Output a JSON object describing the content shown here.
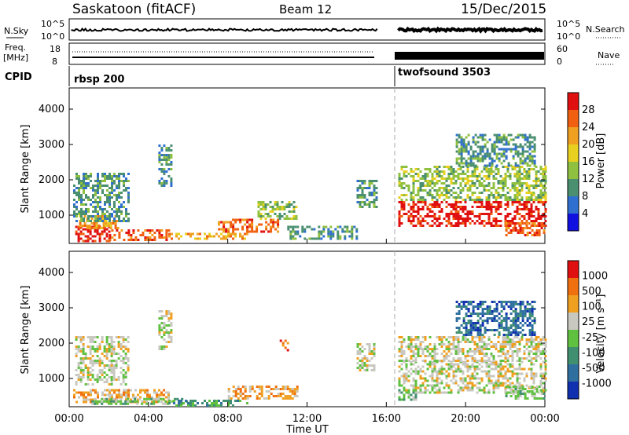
{
  "header": {
    "station": "Saskatoon (fitACF)",
    "beam": "Beam 12",
    "date": "15/Dec/2015"
  },
  "strip": {
    "nsky_label": "N.Sky",
    "nsky_ticks": [
      "10^5",
      "10^0"
    ],
    "nsearch_label": "N.Search",
    "nsearch_ticks": [
      "10^5",
      "10^0"
    ],
    "freq_label_line1": "Freq.",
    "freq_label_line2": "[MHz]",
    "freq_ticks": [
      "18",
      "8"
    ],
    "nave_label": "Nave",
    "nave_ticks": [
      "60",
      "0"
    ],
    "cpid_label": "CPID",
    "cpid_segments": [
      {
        "name": "rbsp 200",
        "start_hour": 0.0,
        "end_hour": 15.6
      },
      {
        "name": "twofsound 3503",
        "start_hour": 16.5,
        "end_hour": 24.0
      }
    ]
  },
  "chart_data": [
    {
      "type": "heatmap",
      "panel": "power",
      "ylabel": "Slant Range [km]",
      "yticks": [
        "1000",
        "2000",
        "3000",
        "4000"
      ],
      "ylim": [
        200,
        4600
      ],
      "x_range_hours": [
        0,
        24
      ],
      "data_gap_hours": [
        15.6,
        16.5
      ],
      "colorbar": {
        "label": "Power [dB]",
        "ticks": [
          "4",
          "8",
          "12",
          "16",
          "20",
          "24",
          "28"
        ],
        "colors": [
          "#1010e0",
          "#2f6fd0",
          "#4a8f70",
          "#8fc040",
          "#e8d020",
          "#f0a020",
          "#f06010",
          "#e01010"
        ]
      },
      "regions": [
        {
          "t0": 0.3,
          "t1": 2.0,
          "r0": 250,
          "r1": 700,
          "level": 7
        },
        {
          "t0": 0.5,
          "t1": 2.5,
          "r0": 600,
          "r1": 1000,
          "level": 5
        },
        {
          "t0": 0.2,
          "t1": 3.0,
          "r0": 800,
          "r1": 2200,
          "level": 2
        },
        {
          "t0": 2.0,
          "t1": 5.0,
          "r0": 300,
          "r1": 600,
          "level": 6
        },
        {
          "t0": 4.5,
          "t1": 5.2,
          "r0": 1800,
          "r1": 3000,
          "level": 2
        },
        {
          "t0": 5.0,
          "t1": 9.0,
          "r0": 300,
          "r1": 500,
          "level": 5
        },
        {
          "t0": 7.5,
          "t1": 10.5,
          "r0": 500,
          "r1": 900,
          "level": 6
        },
        {
          "t0": 9.5,
          "t1": 11.5,
          "r0": 900,
          "r1": 1400,
          "level": 3
        },
        {
          "t0": 11.0,
          "t1": 14.5,
          "r0": 300,
          "r1": 700,
          "level": 2
        },
        {
          "t0": 14.5,
          "t1": 15.5,
          "r0": 1200,
          "r1": 2000,
          "level": 2
        },
        {
          "t0": 16.6,
          "t1": 24.0,
          "r0": 700,
          "r1": 1400,
          "level": 7
        },
        {
          "t0": 16.6,
          "t1": 24.0,
          "r0": 1400,
          "r1": 2400,
          "level": 3
        },
        {
          "t0": 19.5,
          "t1": 23.5,
          "r0": 2400,
          "r1": 3300,
          "level": 2
        },
        {
          "t0": 22.0,
          "t1": 24.0,
          "r0": 400,
          "r1": 800,
          "level": 6
        }
      ]
    },
    {
      "type": "heatmap",
      "panel": "velocity",
      "ylabel": "Slant Range [km]",
      "yticks": [
        "1000",
        "2000",
        "3000",
        "4000"
      ],
      "ylim": [
        200,
        4600
      ],
      "xlabel": "Time UT",
      "xticks": [
        "00:00",
        "04:00",
        "08:00",
        "12:00",
        "16:00",
        "20:00",
        "00:00"
      ],
      "x_range_hours": [
        0,
        24
      ],
      "data_gap_hours": [
        15.6,
        16.5
      ],
      "colorbar": {
        "label": "Velocity [m s⁻¹]",
        "ticks": [
          "1000",
          "500",
          "100",
          "25",
          "-25",
          "-100",
          "-500",
          "-1000"
        ],
        "colors": [
          "#1030b0",
          "#2f6fa0",
          "#3f8f70",
          "#60c040",
          "#c8c8c0",
          "#f0a020",
          "#f07010",
          "#e01010"
        ]
      },
      "regions": [
        {
          "t0": 0.2,
          "t1": 5.0,
          "r0": 300,
          "r1": 700,
          "level": 5
        },
        {
          "t0": 1.0,
          "t1": 6.0,
          "r0": 250,
          "r1": 450,
          "level": 3
        },
        {
          "t0": 0.3,
          "t1": 3.0,
          "r0": 800,
          "r1": 2200,
          "level": 4
        },
        {
          "t0": 4.5,
          "t1": 5.2,
          "r0": 1800,
          "r1": 3000,
          "level": 4
        },
        {
          "t0": 5.0,
          "t1": 9.0,
          "r0": 250,
          "r1": 400,
          "level": 2
        },
        {
          "t0": 8.0,
          "t1": 11.5,
          "r0": 400,
          "r1": 800,
          "level": 5
        },
        {
          "t0": 10.5,
          "t1": 11.0,
          "r0": 1700,
          "r1": 2100,
          "level": 6
        },
        {
          "t0": 14.5,
          "t1": 15.4,
          "r0": 1200,
          "r1": 2000,
          "level": 4
        },
        {
          "t0": 16.6,
          "t1": 24.0,
          "r0": 600,
          "r1": 1500,
          "level": 4
        },
        {
          "t0": 16.6,
          "t1": 24.0,
          "r0": 1500,
          "r1": 2200,
          "level": 4
        },
        {
          "t0": 19.5,
          "t1": 23.5,
          "r0": 2200,
          "r1": 3200,
          "level": 1
        },
        {
          "t0": 16.6,
          "t1": 17.5,
          "r0": 400,
          "r1": 700,
          "level": 3
        },
        {
          "t0": 22.0,
          "t1": 24.0,
          "r0": 400,
          "r1": 800,
          "level": 3
        }
      ]
    }
  ]
}
